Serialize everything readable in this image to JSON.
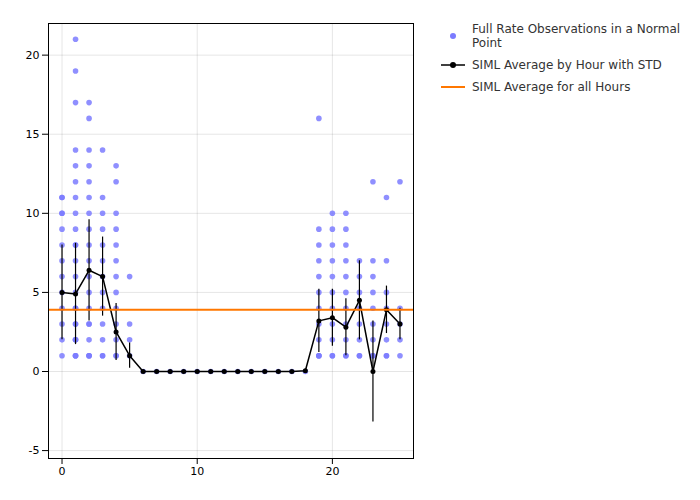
{
  "chart_data": {
    "type": "scatter",
    "xlim": [
      -1,
      26
    ],
    "ylim": [
      -5.5,
      22
    ],
    "xticks": [
      0,
      10,
      20
    ],
    "yticks": [
      -5,
      0,
      5,
      10,
      15,
      20
    ],
    "grid": true,
    "legend": "right",
    "series": [
      {
        "name": "Full Rate Observations in a Normal Point",
        "type": "scatter",
        "color": "#7b7bff",
        "marker": "o",
        "x": [
          0,
          0,
          0,
          0,
          0,
          0,
          0,
          0,
          0,
          0,
          0,
          0,
          0,
          1,
          1,
          1,
          1,
          1,
          1,
          1,
          1,
          1,
          1,
          1,
          1,
          1,
          1,
          1,
          1,
          1,
          1,
          1,
          1,
          1,
          1,
          1,
          1,
          2,
          2,
          2,
          2,
          2,
          2,
          2,
          2,
          2,
          2,
          2,
          2,
          2,
          2,
          2,
          2,
          2,
          2,
          2,
          3,
          3,
          3,
          3,
          3,
          3,
          3,
          3,
          3,
          3,
          3,
          3,
          3,
          4,
          4,
          4,
          4,
          4,
          4,
          4,
          4,
          4,
          4,
          4,
          4,
          4,
          5,
          5,
          5,
          5,
          6,
          7,
          8,
          9,
          10,
          11,
          12,
          13,
          14,
          15,
          16,
          17,
          18,
          19,
          19,
          19,
          19,
          19,
          19,
          19,
          19,
          19,
          19,
          19,
          19,
          20,
          20,
          20,
          20,
          20,
          20,
          20,
          20,
          20,
          20,
          20,
          21,
          21,
          21,
          21,
          21,
          21,
          21,
          21,
          21,
          21,
          21,
          22,
          22,
          22,
          22,
          22,
          22,
          22,
          22,
          23,
          23,
          23,
          23,
          23,
          23,
          23,
          23,
          23,
          24,
          24,
          24,
          24,
          24,
          24,
          24,
          24,
          25,
          25,
          25,
          25,
          25
        ],
        "values": [
          1,
          2,
          3,
          4,
          5,
          6,
          7,
          8,
          9,
          10,
          10,
          11,
          11,
          1,
          1,
          1,
          2,
          2,
          2,
          3,
          3,
          4,
          4,
          5,
          6,
          7,
          8,
          8,
          9,
          10,
          11,
          12,
          13,
          14,
          17,
          19,
          21,
          1,
          1,
          1,
          2,
          3,
          3,
          4,
          5,
          6,
          7,
          8,
          9,
          10,
          11,
          12,
          13,
          14,
          16,
          17,
          1,
          1,
          2,
          3,
          4,
          5,
          6,
          7,
          8,
          9,
          10,
          11,
          14,
          1,
          1,
          2,
          3,
          4,
          5,
          6,
          7,
          8,
          9,
          10,
          12,
          13,
          1,
          2,
          3,
          6,
          0,
          0,
          0,
          0,
          0,
          0,
          0,
          0,
          0,
          0,
          0,
          0,
          0,
          1,
          1,
          1,
          2,
          3,
          4,
          5,
          6,
          7,
          8,
          9,
          16,
          1,
          1,
          2,
          3,
          4,
          5,
          6,
          7,
          8,
          9,
          10,
          1,
          1,
          2,
          3,
          4,
          5,
          6,
          7,
          8,
          9,
          10,
          1,
          1,
          2,
          3,
          4,
          5,
          6,
          7,
          1,
          1,
          2,
          3,
          4,
          5,
          6,
          7,
          12,
          1,
          1,
          2,
          3,
          4,
          5,
          7,
          11,
          1,
          2,
          3,
          4,
          12
        ]
      },
      {
        "name": "SIML Average by Hour with STD",
        "type": "line",
        "color": "black",
        "marker": "o",
        "line_style": "solid",
        "x": [
          0,
          1,
          2,
          3,
          4,
          5,
          6,
          7,
          8,
          9,
          10,
          11,
          12,
          13,
          14,
          15,
          16,
          17,
          18,
          19,
          20,
          21,
          22,
          23,
          24,
          25
        ],
        "values": [
          5.0,
          4.9,
          6.4,
          6.0,
          2.5,
          1.0,
          0.0,
          0.0,
          0.0,
          0.0,
          0.0,
          0.0,
          0.0,
          0.0,
          0.0,
          0.0,
          0.0,
          0.0,
          0.05,
          3.2,
          3.4,
          2.8,
          4.5,
          0.0,
          3.9,
          3.0
        ],
        "errors": [
          3.0,
          3.2,
          3.2,
          2.5,
          1.8,
          0.8,
          0.0,
          0.0,
          0.0,
          0.0,
          0.0,
          0.0,
          0.0,
          0.0,
          0.0,
          0.0,
          0.0,
          0.0,
          0.0,
          2.0,
          1.8,
          1.8,
          2.5,
          3.2,
          1.5,
          1.0
        ]
      },
      {
        "name": "SIML Average for all Hours",
        "type": "hline",
        "color": "#ff7700",
        "line_style": "solid",
        "values": [
          3.9
        ]
      }
    ]
  }
}
